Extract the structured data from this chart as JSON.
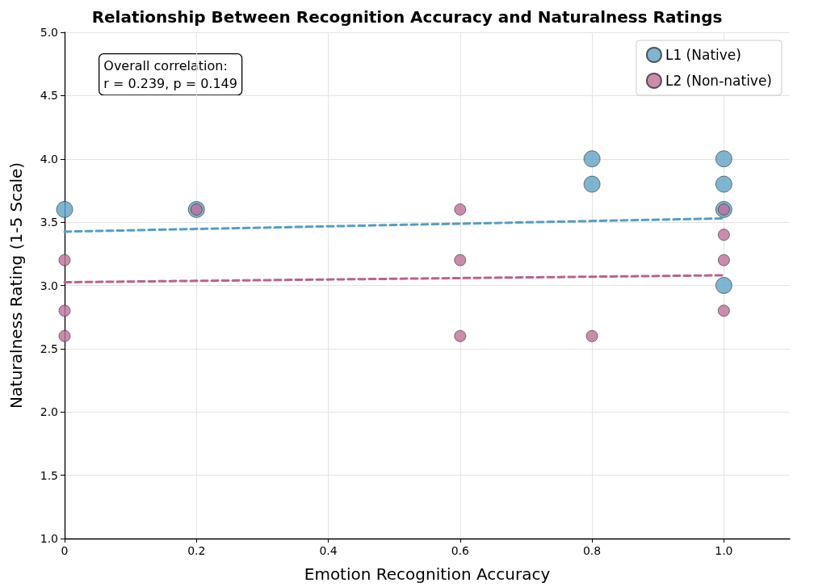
{
  "chart_data": {
    "type": "scatter",
    "title": "Relationship Between Recognition Accuracy and Naturalness Ratings",
    "xlabel": "Emotion Recognition Accuracy",
    "ylabel": "Naturalness Rating (1-5 Scale)",
    "annotations": [
      "Overall correlation:\nr = 0.239, p = 0.149"
    ],
    "xlim": [
      0,
      1.1
    ],
    "xticks": [
      0,
      {
        "value": 0.2,
        "label": "0.2"
      },
      {
        "value": 0.4,
        "label": "0.4"
      },
      {
        "value": 0.6,
        "label": "0.6"
      },
      {
        "value": 0.8,
        "label": "0.8"
      },
      {
        "value": 1,
        "label": "1.0"
      }
    ],
    "ylim": [
      1,
      5
    ],
    "yticks": [
      {
        "value": 1,
        "label": "1.0"
      },
      1.5,
      {
        "value": 2,
        "label": "2.0"
      },
      2.5,
      {
        "value": 3,
        "label": "3.0"
      },
      3.5,
      {
        "value": 4,
        "label": "4.0"
      },
      4.5,
      {
        "value": 5,
        "label": "5.0"
      }
    ],
    "grid": true,
    "legend": "top right",
    "marker": "circle",
    "series": [
      {
        "name": "L1 (Native)",
        "color": "#5fa2c4",
        "x": [
          0,
          0.2,
          0.8,
          0.8,
          1,
          1,
          1,
          1
        ],
        "values": [
          3.6,
          3.6,
          4.0,
          3.8,
          4.0,
          3.8,
          3.6,
          3.0
        ]
      },
      {
        "name": "L2 (Non-native)",
        "color": "#bf6f99",
        "x": [
          0,
          0,
          0,
          0.2,
          0.6,
          0.6,
          0.6,
          0.8,
          1,
          1,
          1,
          1
        ],
        "values": [
          3.2,
          2.8,
          2.6,
          3.6,
          3.6,
          3.2,
          2.6,
          2.6,
          3.6,
          3.4,
          3.2,
          2.8
        ]
      },
      {
        "type": "line",
        "color": "#559fc3",
        "line_style": "dashed",
        "marker": "none",
        "x": [
          0,
          1
        ],
        "values": [
          3.425,
          3.53
        ]
      },
      {
        "type": "line",
        "color": "#b9638f",
        "line_style": "dashed",
        "marker": "none",
        "x": [
          0,
          1
        ],
        "values": [
          3.025,
          3.08
        ]
      }
    ]
  }
}
